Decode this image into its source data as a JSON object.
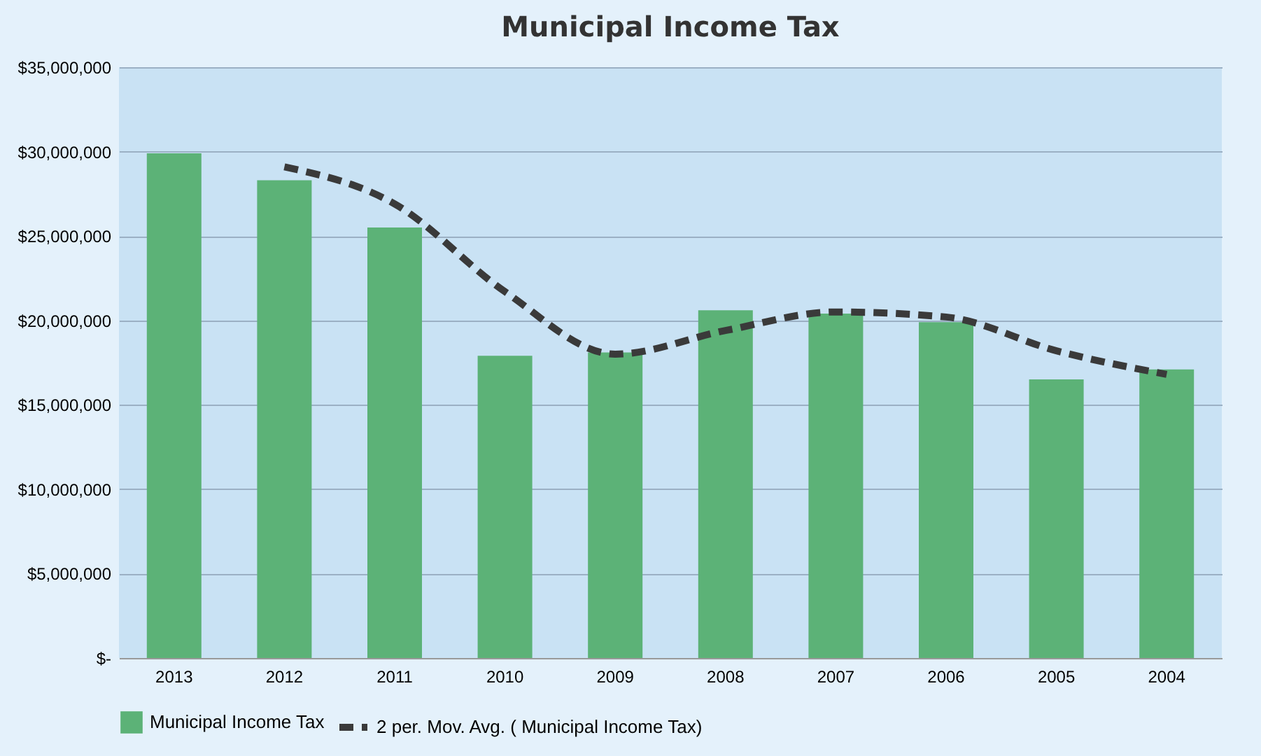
{
  "chart_data": {
    "type": "bar",
    "title": "Municipal Income Tax",
    "categories": [
      "2013",
      "2012",
      "2011",
      "2010",
      "2009",
      "2008",
      "2007",
      "2006",
      "2005",
      "2004"
    ],
    "series": [
      {
        "name": "Municipal Income Tax",
        "color": "#5cb277",
        "values": [
          29900000,
          28300000,
          25500000,
          17900000,
          18100000,
          20600000,
          20400000,
          19900000,
          16500000,
          17100000
        ]
      },
      {
        "name": "2 per. Mov. Avg. (  Municipal Income Tax)",
        "type": "line",
        "color": "#3a3a3a",
        "line_style": "dashed",
        "values": [
          null,
          29100000,
          26900000,
          21700000,
          18000000,
          19400000,
          20500000,
          20200000,
          18200000,
          16800000
        ]
      }
    ],
    "ylim": [
      0,
      35000000
    ],
    "yticks": [
      {
        "value": 0,
        "label": "$-"
      },
      {
        "value": 5000000,
        "label": "$5,000,000"
      },
      {
        "value": 10000000,
        "label": "$10,000,000"
      },
      {
        "value": 15000000,
        "label": "$15,000,000"
      },
      {
        "value": 20000000,
        "label": "$20,000,000"
      },
      {
        "value": 25000000,
        "label": "$25,000,000"
      },
      {
        "value": 30000000,
        "label": "$30,000,000"
      },
      {
        "value": 35000000,
        "label": "$35,000,000"
      }
    ],
    "grid": "y",
    "legend": "bottom"
  }
}
